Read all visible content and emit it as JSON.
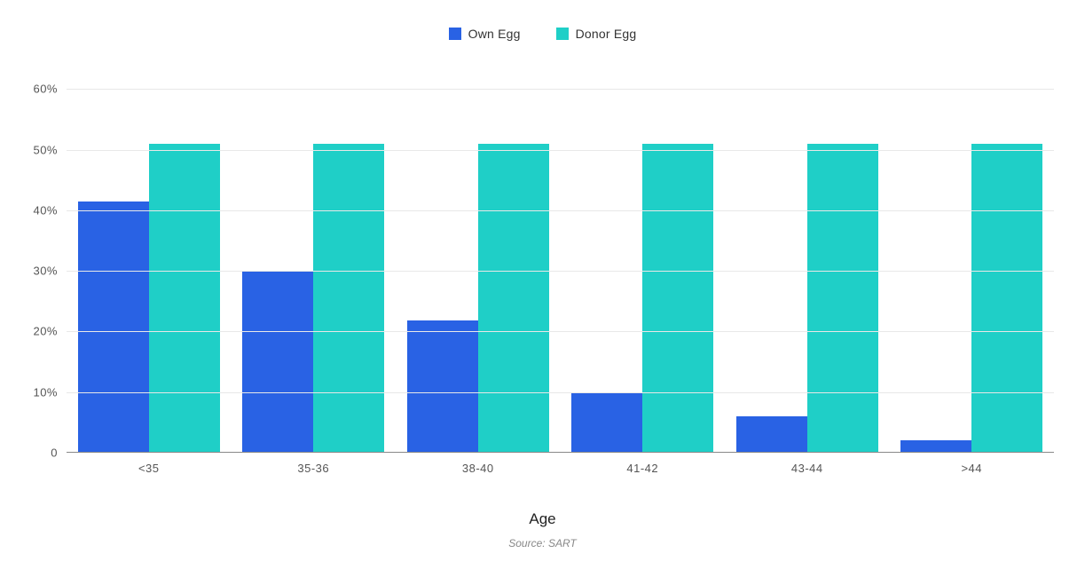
{
  "chart": {
    "type": "bar",
    "legend": {
      "items": [
        {
          "label": "Own Egg",
          "color": "#2962e4"
        },
        {
          "label": "Donor Egg",
          "color": "#1fcfc7"
        }
      ],
      "position": "top-center",
      "fontsize": 14
    },
    "categories": [
      "<35",
      "35-36",
      "38-40",
      "41-42",
      "43-44",
      ">44"
    ],
    "series": [
      {
        "name": "Own Egg",
        "color": "#2962e4",
        "values": [
          41.5,
          30,
          21.8,
          10,
          6,
          2
        ]
      },
      {
        "name": "Donor Egg",
        "color": "#1fcfc7",
        "values": [
          51,
          51,
          51,
          51,
          51,
          51
        ]
      }
    ],
    "y_axis": {
      "min": 0,
      "max": 63,
      "ticks": [
        0,
        10,
        20,
        30,
        40,
        50,
        60
      ],
      "tick_labels": [
        "0",
        "10%",
        "20%",
        "30%",
        "40%",
        "50%",
        "60%"
      ],
      "label_fontsize": 13
    },
    "x_axis": {
      "title": "Age",
      "title_fontsize": 17,
      "label_fontsize": 13
    },
    "grid_color": "#e8e8e8",
    "baseline_color": "#888888",
    "background_color": "#ffffff",
    "bar_gap": 0,
    "bar_group_width_pct": 88,
    "source_note": "Source: SART",
    "source_fontsize": 12
  }
}
